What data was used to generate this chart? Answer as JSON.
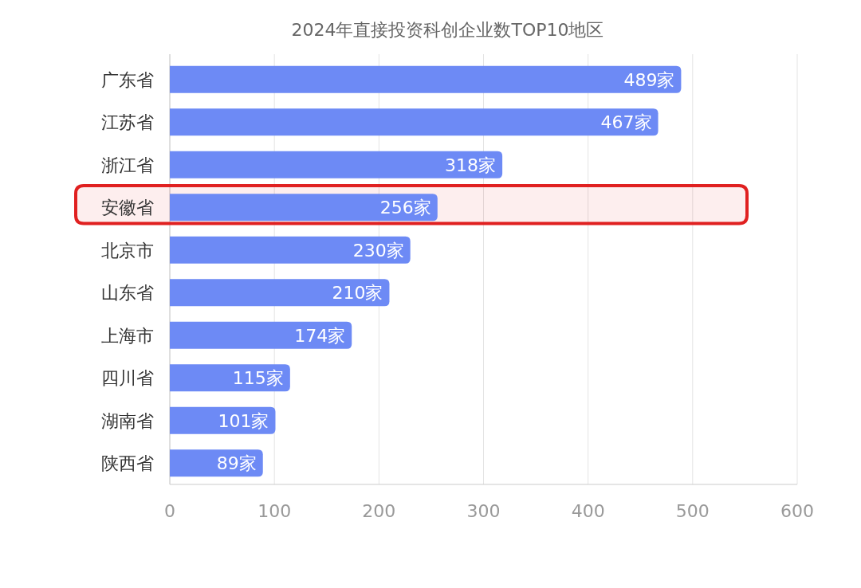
{
  "chart_data": {
    "type": "bar",
    "orientation": "horizontal",
    "title": "2024年直接投资科创企业数TOP10地区",
    "categories": [
      "广东省",
      "江苏省",
      "浙江省",
      "安徽省",
      "北京市",
      "山东省",
      "上海市",
      "四川省",
      "湖南省",
      "陕西省"
    ],
    "values": [
      489,
      467,
      318,
      256,
      230,
      210,
      174,
      115,
      101,
      89
    ],
    "value_labels": [
      "489家",
      "467家",
      "318家",
      "256家",
      "230家",
      "210家",
      "174家",
      "115家",
      "101家",
      "89家"
    ],
    "color": "#6d8af5",
    "xlim": [
      0,
      600
    ],
    "xticks": [
      0,
      100,
      200,
      300,
      400,
      500,
      600
    ],
    "grid": "x",
    "bands": [
      {
        "axis": "y",
        "from": "安徽省",
        "to": "安徽省",
        "color": "#e02020"
      }
    ]
  }
}
